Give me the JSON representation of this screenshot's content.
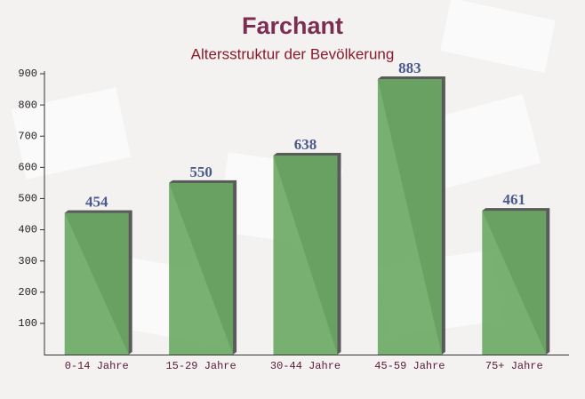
{
  "chart_data": {
    "type": "bar",
    "title": "Farchant",
    "subtitle": "Altersstruktur der Bevölkerung",
    "categories": [
      "0-14 Jahre",
      "15-29 Jahre",
      "30-44 Jahre",
      "45-59 Jahre",
      "75+ Jahre"
    ],
    "values": [
      454,
      550,
      638,
      883,
      461
    ],
    "color": "#6aa864",
    "ylim": [
      0,
      900
    ],
    "yticks": [
      100,
      200,
      300,
      400,
      500,
      600,
      700,
      800,
      900
    ],
    "grid": false
  }
}
